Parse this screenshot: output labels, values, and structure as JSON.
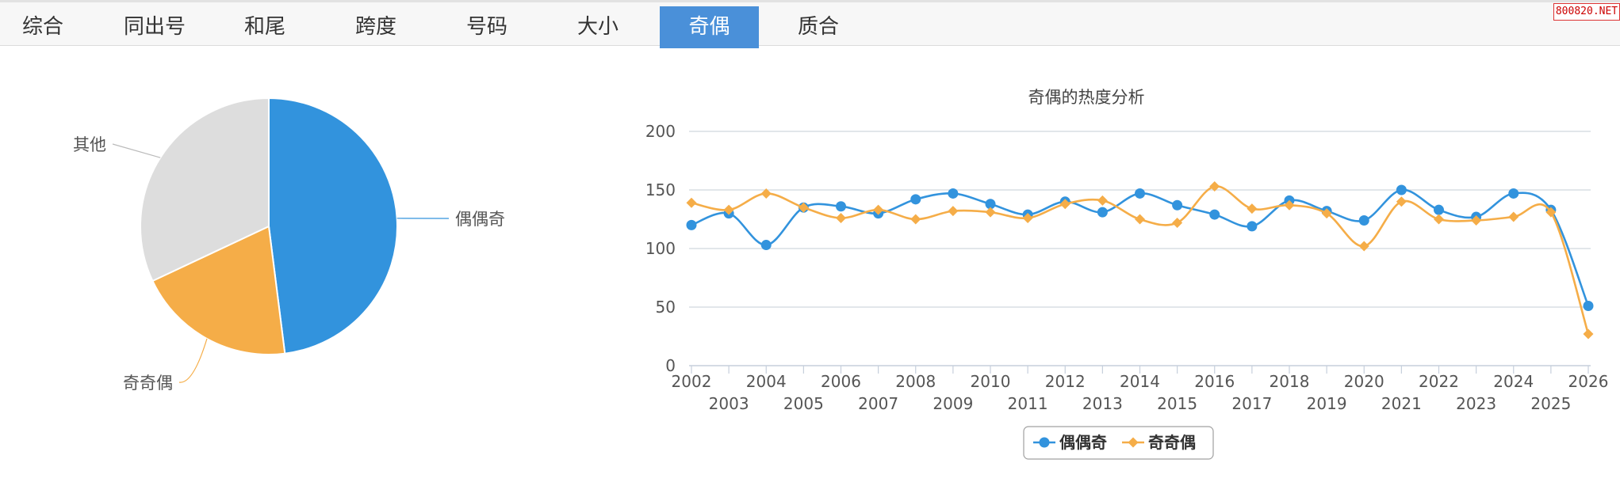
{
  "tabs": [
    {
      "label": "综合",
      "active": false
    },
    {
      "label": "同出号",
      "active": false
    },
    {
      "label": "和尾",
      "active": false
    },
    {
      "label": "跨度",
      "active": false
    },
    {
      "label": "号码",
      "active": false
    },
    {
      "label": "大小",
      "active": false
    },
    {
      "label": "奇偶",
      "active": true
    },
    {
      "label": "质合",
      "active": false
    }
  ],
  "watermark": "800820.NET",
  "colors": {
    "blue": "#3293dd",
    "orange": "#f5ad48",
    "gray": "#dddddd",
    "active_tab": "#4a90d9"
  },
  "chart_data": [
    {
      "type": "pie",
      "slices": [
        {
          "name": "偶偶奇",
          "value": 48,
          "color": "#3293dd"
        },
        {
          "name": "奇奇偶",
          "value": 20,
          "color": "#f5ad48"
        },
        {
          "name": "其他",
          "value": 32,
          "color": "#dddddd"
        }
      ]
    },
    {
      "type": "line",
      "title": "奇偶的热度分析",
      "x": [
        "2002",
        "2003",
        "2004",
        "2005",
        "2006",
        "2007",
        "2008",
        "2009",
        "2010",
        "2011",
        "2012",
        "2013",
        "2014",
        "2015",
        "2016",
        "2017",
        "2018",
        "2019",
        "2020",
        "2021",
        "2022",
        "2023",
        "2024",
        "2025",
        "2026"
      ],
      "ylim": [
        0,
        200
      ],
      "yticks": [
        0,
        50,
        100,
        150,
        200
      ],
      "grid": true,
      "legend_position": "bottom-center",
      "series": [
        {
          "name": "偶偶奇",
          "color": "#3293dd",
          "marker": "circle",
          "values": [
            120,
            130,
            103,
            135,
            136,
            130,
            142,
            147,
            138,
            129,
            140,
            131,
            147,
            137,
            129,
            119,
            141,
            132,
            124,
            150,
            133,
            127,
            147,
            133,
            51
          ]
        },
        {
          "name": "奇奇偶",
          "color": "#f5ad48",
          "marker": "diamond",
          "values": [
            139,
            133,
            147,
            135,
            126,
            133,
            125,
            132,
            131,
            126,
            138,
            141,
            125,
            122,
            153,
            134,
            137,
            130,
            102,
            140,
            125,
            124,
            127,
            131,
            27
          ]
        }
      ]
    }
  ]
}
